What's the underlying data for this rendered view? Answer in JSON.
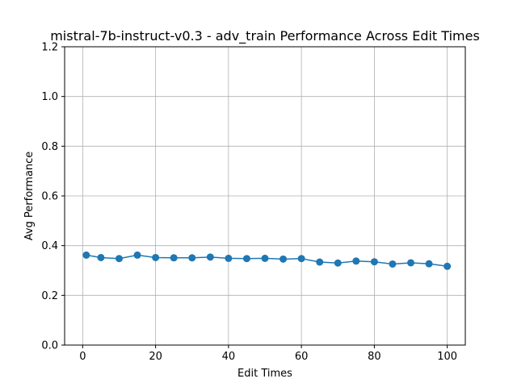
{
  "chart_data": {
    "type": "line",
    "title": "mistral-7b-instruct-v0.3 - adv_train Performance Across Edit Times",
    "xlabel": "Edit Times",
    "ylabel": "Avg Performance",
    "xlim": [
      -4.95,
      104.95
    ],
    "ylim": [
      0.0,
      1.2
    ],
    "xticks": [
      0,
      20,
      40,
      60,
      80,
      100
    ],
    "yticks": [
      0.0,
      0.2,
      0.4,
      0.6,
      0.8,
      1.0,
      1.2
    ],
    "xtick_labels": [
      "0",
      "20",
      "40",
      "60",
      "80",
      "100"
    ],
    "ytick_labels": [
      "0.0",
      "0.2",
      "0.4",
      "0.6",
      "0.8",
      "1.0",
      "1.2"
    ],
    "grid": true,
    "series": [
      {
        "color": "#1f77b4",
        "x": [
          1,
          5,
          10,
          15,
          20,
          25,
          30,
          35,
          40,
          45,
          50,
          55,
          60,
          65,
          70,
          75,
          80,
          85,
          90,
          95,
          100
        ],
        "y": [
          0.362,
          0.352,
          0.348,
          0.362,
          0.352,
          0.351,
          0.351,
          0.354,
          0.349,
          0.348,
          0.349,
          0.346,
          0.348,
          0.334,
          0.33,
          0.338,
          0.335,
          0.326,
          0.331,
          0.327,
          0.317
        ]
      }
    ]
  }
}
